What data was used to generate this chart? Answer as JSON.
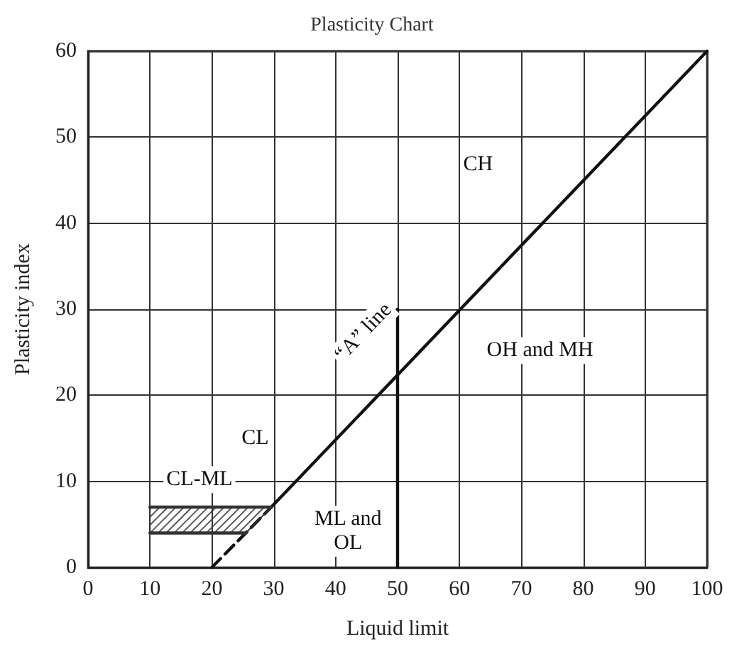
{
  "chart_data": {
    "type": "line",
    "title": "Plasticity Chart",
    "xlabel": "Liquid limit",
    "ylabel": "Plasticity index",
    "xlim": [
      0,
      100
    ],
    "ylim": [
      0,
      60
    ],
    "xticks": [
      0,
      10,
      20,
      30,
      40,
      50,
      60,
      70,
      80,
      90,
      100
    ],
    "yticks": [
      0,
      10,
      20,
      30,
      40,
      50,
      60
    ],
    "grid": true,
    "marker": "none",
    "series": [
      {
        "type": "line",
        "color": "#111111",
        "line_style": "solid",
        "x": [
          29.6,
          100
        ],
        "values": [
          7,
          60
        ]
      },
      {
        "type": "line",
        "color": "#111111",
        "line_style": "dashed",
        "x": [
          20,
          29.6
        ],
        "values": [
          0,
          7
        ]
      },
      {
        "type": "line",
        "color": "#111111",
        "line_style": "solid",
        "x": [
          50,
          50
        ],
        "values": [
          0,
          30
        ]
      },
      {
        "color": "#333333",
        "line_style": "solid",
        "x": [
          10,
          29.6
        ],
        "values": [
          7,
          7
        ]
      },
      {
        "color": "#333333",
        "line_style": "solid",
        "x": [
          10,
          25.5
        ],
        "values": [
          4,
          4
        ]
      }
    ],
    "annotations": [
      "CH",
      "OH and MH",
      "CL",
      "CL-ML",
      "ML and\nOL",
      "“A” line"
    ]
  }
}
